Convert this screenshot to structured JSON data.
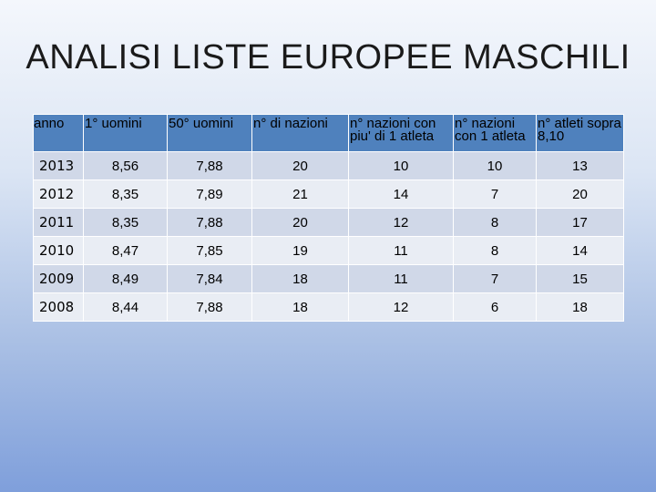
{
  "slide": {
    "title": "ANALISI LISTE EUROPEE MASCHILI"
  },
  "table": {
    "headers": [
      "anno",
      "1° uomini",
      "50° uomini",
      "n° di nazioni",
      "n° nazioni con piu' di 1 atleta",
      "n° nazioni con 1 atleta",
      "n° atleti sopra 8,10"
    ],
    "rows": [
      [
        "2013",
        "8,56",
        "7,88",
        "20",
        "10",
        "10",
        "13"
      ],
      [
        "2012",
        "8,35",
        "7,89",
        "21",
        "14",
        "7",
        "20"
      ],
      [
        "2011",
        "8,35",
        "7,88",
        "20",
        "12",
        "8",
        "17"
      ],
      [
        "2010",
        "8,47",
        "7,85",
        "19",
        "11",
        "8",
        "14"
      ],
      [
        "2009",
        "8,49",
        "7,84",
        "18",
        "11",
        "7",
        "15"
      ],
      [
        "2008",
        "8,44",
        "7,88",
        "18",
        "12",
        "6",
        "18"
      ]
    ]
  },
  "colors": {
    "header_bg": "#4f81bd",
    "row_odd": "#d0d8e8",
    "row_even": "#e9edf4"
  }
}
